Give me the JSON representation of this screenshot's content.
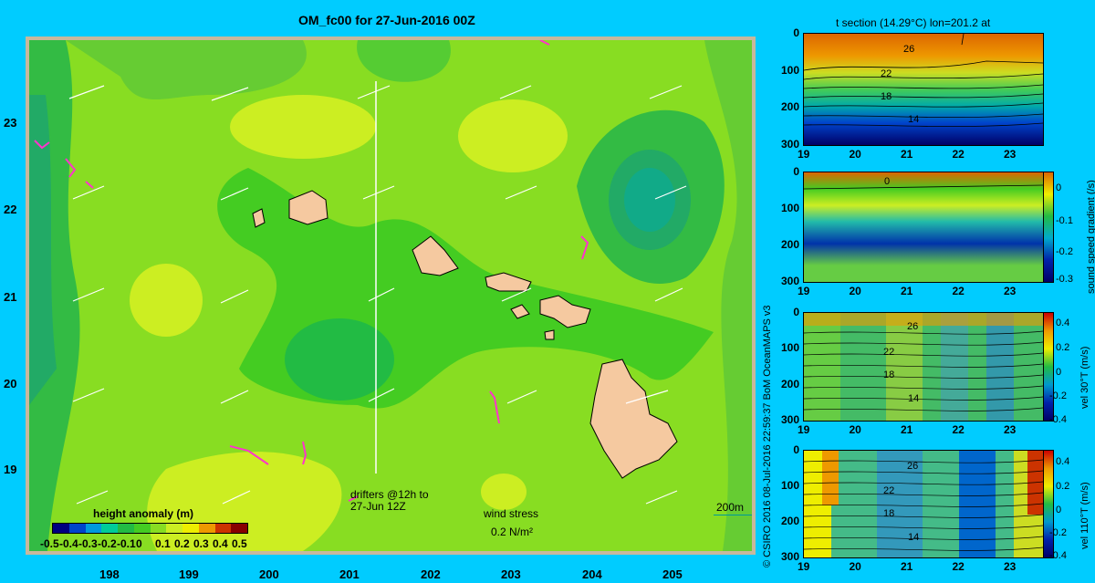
{
  "map": {
    "title": "OM_fc00 for 27-Jun-2016 00Z",
    "lat_ticks": [
      "23",
      "22",
      "21",
      "20",
      "19"
    ],
    "lon_ticks": [
      "198",
      "199",
      "200",
      "201",
      "202",
      "203",
      "204",
      "205"
    ],
    "legend": {
      "title": "height anomaly  (m)",
      "ticks": [
        "-0.5",
        "-0.4",
        "-0.3",
        "-0.2",
        "-0.1",
        "0",
        "0.1",
        "0.2",
        "0.3",
        "0.4",
        "0.5"
      ],
      "colors": [
        "#000080",
        "#0044cc",
        "#0099dd",
        "#00cc99",
        "#22bb44",
        "#44cc22",
        "#88dd22",
        "#ccee22",
        "#eeee00",
        "#ee9900",
        "#cc3300",
        "#880000"
      ]
    },
    "drifters_label": "drifters @12h to",
    "drifters_label2": "27-Jun 12Z",
    "wind_label": "wind stress",
    "wind_scale": "0.2 N/m²",
    "scale_label": "200m"
  },
  "panels": {
    "p1_title": "t section (14.29°C) lon=201.2 at",
    "y_ticks": [
      "0",
      "100",
      "200",
      "300"
    ],
    "x_ticks": [
      "19",
      "20",
      "21",
      "22",
      "23"
    ],
    "p1_contours": [
      "26",
      "22",
      "18",
      "14"
    ],
    "p2_contours": [
      "0"
    ],
    "p2_cbar_ticks": [
      "0",
      "-0.1",
      "-0.2",
      "-0.3"
    ],
    "p2_cbar_label": "sound speed gradient  (/s)",
    "p3_contours": [
      "26",
      "22",
      "18",
      "14"
    ],
    "p3_cbar_ticks": [
      "0.4",
      "0.2",
      "0",
      "-0.2",
      "-0.4"
    ],
    "p3_cbar_label": "vel 30°T (m/s)",
    "p4_contours": [
      "26",
      "22",
      "18",
      "14"
    ],
    "p4_cbar_ticks": [
      "0.4",
      "0.2",
      "0",
      "-0.2",
      "-0.4"
    ],
    "p4_cbar_label": "vel 110°T (m/s)",
    "credit": "© CSIRO 2016   08-Jul-2016 22:59:37 BoM OceanMAPS v3"
  }
}
